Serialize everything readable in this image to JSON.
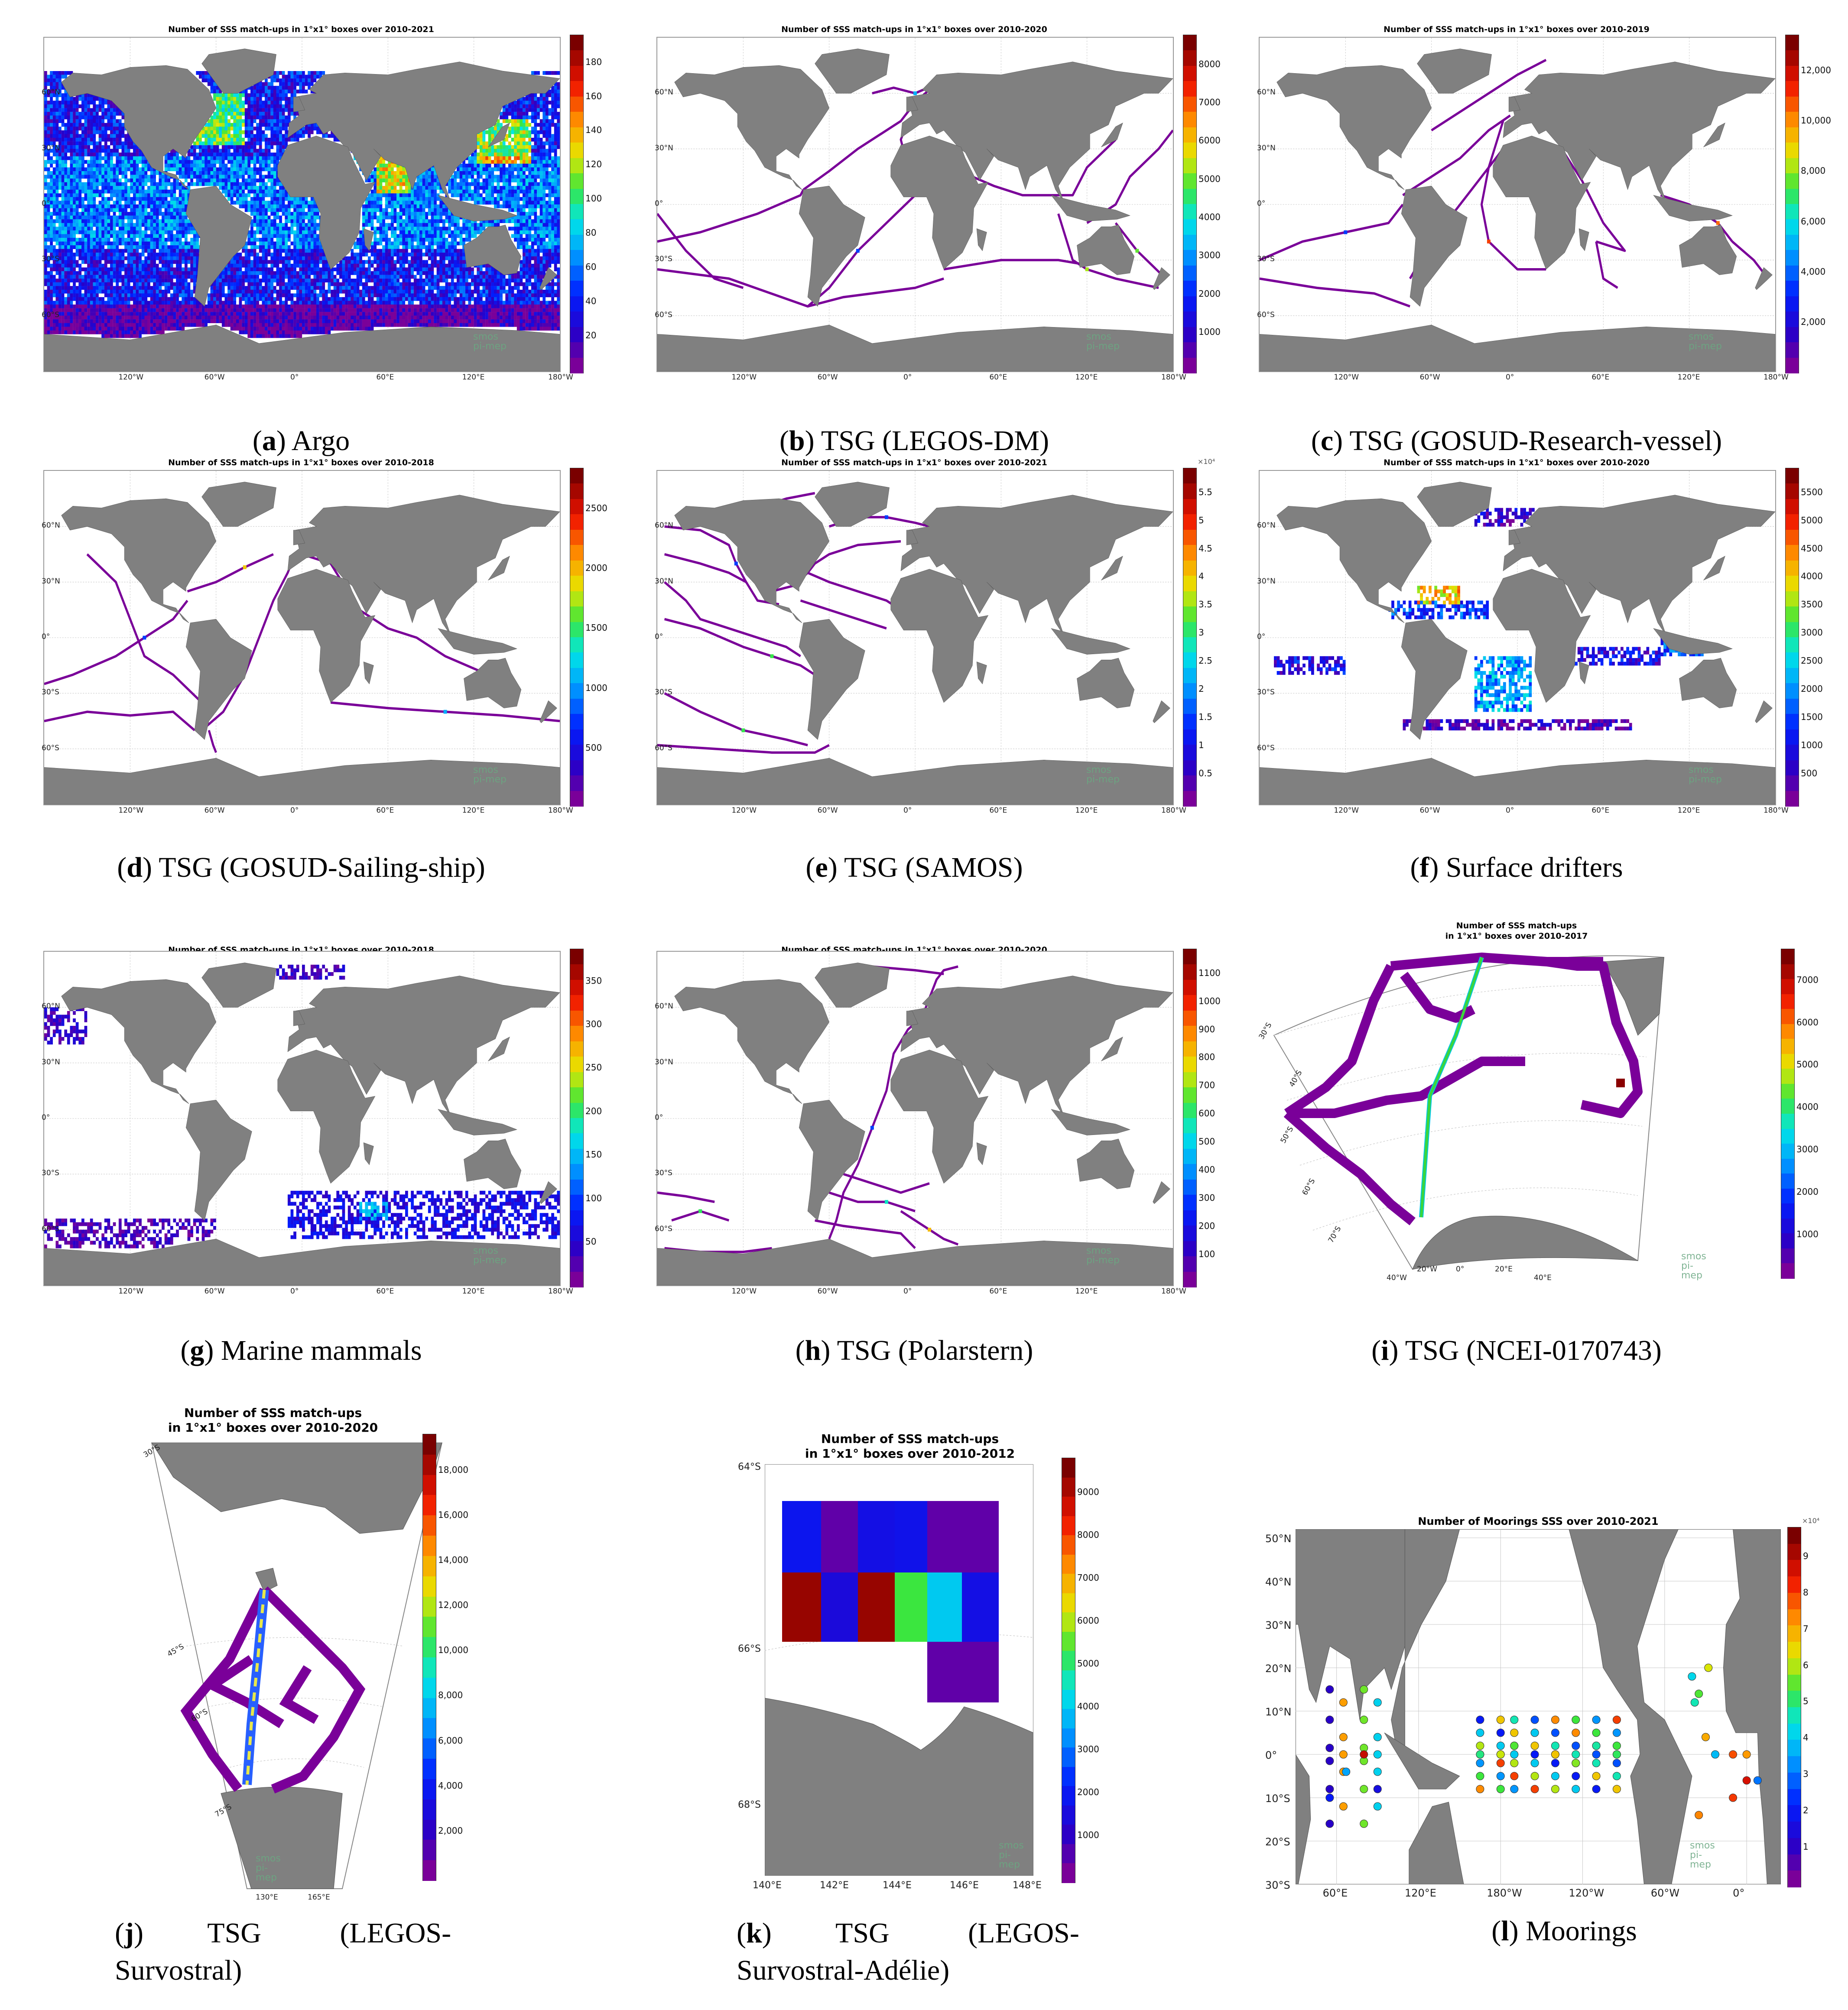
{
  "colors": {
    "land": "#808080",
    "ocean": "#ffffff",
    "grid": "#c8c8c8",
    "low": "#7a0099",
    "high": "#7a0000"
  },
  "logo": {
    "line1": "smos",
    "line2": "pi-mep",
    "icon": "smos-pi-mep-logo-icon"
  },
  "panels": [
    {
      "key": "a",
      "caption_letter": "a",
      "caption_text": "Argo",
      "title": "Number of SSS match-ups in 1°x1° boxes over 2010-2021",
      "projection": "global",
      "style": "dense",
      "lat_labels": [
        "60°N",
        "30°N",
        "0°",
        "30°S",
        "60°S"
      ],
      "lon_labels": [
        "120°W",
        "60°W",
        "0°",
        "60°E",
        "120°E",
        "180°W"
      ],
      "cbar_ticks": [
        "180",
        "160",
        "140",
        "120",
        "100",
        "80",
        "60",
        "40",
        "20"
      ],
      "cbar_exp": ""
    },
    {
      "key": "b",
      "caption_letter": "b",
      "caption_text": "TSG (LEGOS-DM)",
      "title": "Number of SSS match-ups in 1°x1° boxes over 2010-2020",
      "projection": "global",
      "style": "tracks",
      "lat_labels": [
        "60°N",
        "30°N",
        "0°",
        "30°S",
        "60°S"
      ],
      "lon_labels": [
        "120°W",
        "60°W",
        "0°",
        "60°E",
        "120°E",
        "180°W"
      ],
      "cbar_ticks": [
        "8000",
        "7000",
        "6000",
        "5000",
        "4000",
        "3000",
        "2000",
        "1000"
      ],
      "cbar_exp": ""
    },
    {
      "key": "c",
      "caption_letter": "c",
      "caption_text": "TSG (GOSUD-Research-vessel)",
      "title": "Number of SSS match-ups in 1°x1° boxes over 2010-2019",
      "projection": "global",
      "style": "tracks",
      "lat_labels": [
        "60°N",
        "30°N",
        "0°",
        "30°S",
        "60°S"
      ],
      "lon_labels": [
        "120°W",
        "60°W",
        "0°",
        "60°E",
        "120°E",
        "180°W"
      ],
      "cbar_ticks": [
        "12,000",
        "10,000",
        "8,000",
        "6,000",
        "4,000",
        "2,000"
      ],
      "cbar_exp": ""
    },
    {
      "key": "d",
      "caption_letter": "d",
      "caption_text": "TSG (GOSUD-Sailing-ship)",
      "title": "Number of SSS match-ups in 1°x1° boxes over 2010-2018",
      "projection": "global",
      "style": "tracks",
      "lat_labels": [
        "60°N",
        "30°N",
        "0°",
        "30°S",
        "60°S"
      ],
      "lon_labels": [
        "120°W",
        "60°W",
        "0°",
        "60°E",
        "120°E",
        "180°W"
      ],
      "cbar_ticks": [
        "2500",
        "2000",
        "1500",
        "1000",
        "500"
      ],
      "cbar_exp": ""
    },
    {
      "key": "e",
      "caption_letter": "e",
      "caption_text": "TSG (SAMOS)",
      "title": "Number of SSS match-ups in 1°x1° boxes over 2010-2021",
      "projection": "global",
      "style": "tracks",
      "lat_labels": [
        "60°N",
        "30°N",
        "0°",
        "30°S",
        "60°S"
      ],
      "lon_labels": [
        "120°W",
        "60°W",
        "0°",
        "60°E",
        "120°E",
        "180°W"
      ],
      "cbar_ticks": [
        "5.5",
        "5",
        "4.5",
        "4",
        "3.5",
        "3",
        "2.5",
        "2",
        "1.5",
        "1",
        "0.5"
      ],
      "cbar_exp": "×10⁴"
    },
    {
      "key": "f",
      "caption_letter": "f",
      "caption_text": "Surface drifters",
      "title": "Number of SSS match-ups in 1°x1° boxes over 2010-2020",
      "projection": "global",
      "style": "drifters",
      "lat_labels": [
        "60°N",
        "30°N",
        "0°",
        "30°S",
        "60°S"
      ],
      "lon_labels": [
        "120°W",
        "60°W",
        "0°",
        "60°E",
        "120°E",
        "180°W"
      ],
      "cbar_ticks": [
        "5500",
        "5000",
        "4500",
        "4000",
        "3500",
        "3000",
        "2500",
        "2000",
        "1500",
        "1000",
        "500"
      ],
      "cbar_exp": ""
    },
    {
      "key": "g",
      "caption_letter": "g",
      "caption_text": "Marine mammals",
      "title": "Number of SSS match-ups in 1°x1° boxes over 2010-2018",
      "projection": "global",
      "style": "mammals",
      "lat_labels": [
        "60°N",
        "30°N",
        "0°",
        "30°S",
        "60°S"
      ],
      "lon_labels": [
        "120°W",
        "60°W",
        "0°",
        "60°E",
        "120°E",
        "180°W"
      ],
      "cbar_ticks": [
        "350",
        "300",
        "250",
        "200",
        "150",
        "100",
        "50"
      ],
      "cbar_exp": ""
    },
    {
      "key": "h",
      "caption_letter": "h",
      "caption_text": "TSG (Polarstern)",
      "title": "Number of SSS match-ups in 1°x1° boxes over 2010-2020",
      "projection": "global",
      "style": "tracks",
      "lat_labels": [
        "60°N",
        "30°N",
        "0°",
        "30°S",
        "60°S"
      ],
      "lon_labels": [
        "120°W",
        "60°W",
        "0°",
        "60°E",
        "120°E",
        "180°W"
      ],
      "cbar_ticks": [
        "1100",
        "1000",
        "900",
        "800",
        "700",
        "600",
        "500",
        "400",
        "300",
        "200",
        "100"
      ],
      "cbar_exp": ""
    },
    {
      "key": "i",
      "caption_letter": "i",
      "caption_text": "TSG (NCEI-0170743)",
      "title_line1": "Number of SSS match-ups",
      "title_line2": "in 1°x1° boxes over 2010-2017",
      "projection": "conic",
      "lat_labels": [
        "30°S",
        "40°S",
        "50°S",
        "60°S",
        "70°S"
      ],
      "lon_labels": [
        "40°W",
        "20°W",
        "0°",
        "20°E",
        "40°E"
      ],
      "cbar_ticks": [
        "7000",
        "6000",
        "5000",
        "4000",
        "3000",
        "2000",
        "1000"
      ],
      "cbar_exp": ""
    },
    {
      "key": "j",
      "caption_letter": "j",
      "caption_line1": "TSG           (LEGOS-",
      "caption_line2": "Survostral)",
      "title_line1": "Number of SSS match-ups",
      "title_line2": "in 1°x1° boxes over 2010-2020",
      "projection": "conic",
      "lat_labels": [
        "30°S",
        "45°S",
        "60°S",
        "75°S"
      ],
      "lon_labels": [
        "130°E",
        "165°E"
      ],
      "cbar_ticks": [
        "18,000",
        "16,000",
        "14,000",
        "12,000",
        "10,000",
        "8,000",
        "6,000",
        "4,000",
        "2,000"
      ],
      "cbar_exp": ""
    },
    {
      "key": "k",
      "caption_letter": "k",
      "caption_line1": "TSG           (LEGOS-",
      "caption_line2": "Survostral-Adélie)",
      "title_line1": "Number of SSS match-ups",
      "title_line2": "in 1°x1° boxes over 2010-2012",
      "projection": "regional",
      "lat_labels": [
        "64°S",
        "66°S",
        "68°S"
      ],
      "lon_labels": [
        "140°E",
        "142°E",
        "144°E",
        "146°E",
        "148°E"
      ],
      "cbar_ticks": [
        "9000",
        "8000",
        "7000",
        "6000",
        "5000",
        "4000",
        "3000",
        "2000",
        "1000"
      ],
      "cbar_exp": ""
    },
    {
      "key": "l",
      "caption_letter": "l",
      "caption_text": "Moorings",
      "title": "Number of Moorings SSS over 2010-2021",
      "projection": "tropical",
      "lat_labels": [
        "50°N",
        "40°N",
        "30°N",
        "20°N",
        "10°N",
        "0°",
        "10°S",
        "20°S",
        "30°S"
      ],
      "lon_labels": [
        "60°E",
        "120°E",
        "180°W",
        "120°W",
        "60°W",
        "0°"
      ],
      "cbar_ticks": [
        "9",
        "8",
        "7",
        "6",
        "5",
        "4",
        "3",
        "2",
        "1"
      ],
      "cbar_exp": "×10⁴"
    }
  ],
  "chart_data": [
    {
      "panel": "a",
      "type": "heatmap",
      "title": "Number of SSS match-ups in 1°x1° boxes over 2010-2021",
      "colorbar_range": [
        0,
        190
      ]
    },
    {
      "panel": "b",
      "type": "heatmap",
      "title": "Number of SSS match-ups in 1°x1° boxes over 2010-2020",
      "colorbar_range": [
        0,
        8800
      ]
    },
    {
      "panel": "c",
      "type": "heatmap",
      "title": "Number of SSS match-ups in 1°x1° boxes over 2010-2019",
      "colorbar_range": [
        0,
        12300
      ]
    },
    {
      "panel": "d",
      "type": "heatmap",
      "title": "Number of SSS match-ups in 1°x1° boxes over 2010-2018",
      "colorbar_range": [
        0,
        2950
      ]
    },
    {
      "panel": "e",
      "type": "heatmap",
      "title": "Number of SSS match-ups in 1°x1° boxes over 2010-2021",
      "colorbar_range": [
        0,
        57000
      ]
    },
    {
      "panel": "f",
      "type": "heatmap",
      "title": "Number of SSS match-ups in 1°x1° boxes over 2010-2020",
      "colorbar_range": [
        0,
        5650
      ]
    },
    {
      "panel": "g",
      "type": "heatmap",
      "title": "Number of SSS match-ups in 1°x1° boxes over 2010-2018",
      "colorbar_range": [
        0,
        380
      ]
    },
    {
      "panel": "h",
      "type": "heatmap",
      "title": "Number of SSS match-ups in 1°x1° boxes over 2010-2020",
      "colorbar_range": [
        0,
        1150
      ]
    },
    {
      "panel": "i",
      "type": "heatmap",
      "colorbar_range": [
        0,
        7200
      ]
    },
    {
      "panel": "j",
      "type": "heatmap",
      "colorbar_range": [
        0,
        18500
      ]
    },
    {
      "panel": "k",
      "type": "heatmap",
      "colorbar_range": [
        0,
        9300
      ],
      "x": [
        "140°E-142°E",
        "142°E-143°E",
        "143°E-144°E",
        "144°E-145°E",
        "145°E-146°E",
        "146°E-147°E"
      ],
      "rows": [
        {
          "lat": "64.5°S-65.5°S",
          "values": [
            1700,
            300,
            1500,
            1600,
            300,
            300
          ]
        },
        {
          "lat": "65.5°S-66.5°S",
          "values": [
            9000,
            1300,
            9000,
            5100,
            3800,
            1500
          ]
        },
        {
          "lat": "66.5°S-67.2°S",
          "values": [
            null,
            null,
            null,
            null,
            300,
            300
          ]
        }
      ]
    },
    {
      "panel": "l",
      "type": "scatter",
      "title": "Number of Moorings SSS over 2010-2021",
      "colorbar_range": [
        0,
        98000
      ],
      "units": "count",
      "points": [
        {
          "lon": -40,
          "lat": 18,
          "v": 42000
        },
        {
          "lon": -38,
          "lat": 12,
          "v": 47000
        },
        {
          "lon": -35,
          "lat": 14,
          "v": 55000
        },
        {
          "lon": -28,
          "lat": 20,
          "v": 63000
        },
        {
          "lon": -30,
          "lat": 4,
          "v": 71000
        },
        {
          "lon": -23,
          "lat": 0,
          "v": 38000
        },
        {
          "lon": -10,
          "lat": 0,
          "v": 80000
        },
        {
          "lon": 0,
          "lat": 0,
          "v": 73000
        },
        {
          "lon": 8,
          "lat": -6,
          "v": 30000
        },
        {
          "lon": -10,
          "lat": -10,
          "v": 82000
        },
        {
          "lon": 0,
          "lat": -6,
          "v": 88000
        },
        {
          "lon": -35,
          "lat": -14,
          "v": 75000
        },
        {
          "lon": 165,
          "lat": 0,
          "v": 50000
        },
        {
          "lon": 180,
          "lat": 0,
          "v": 62000
        },
        {
          "lon": -170,
          "lat": 2,
          "v": 55000
        },
        {
          "lon": -155,
          "lat": 5,
          "v": 40000
        },
        {
          "lon": -140,
          "lat": 0,
          "v": 68000
        },
        {
          "lon": -125,
          "lat": -2,
          "v": 58000
        },
        {
          "lon": -110,
          "lat": 2,
          "v": 48000
        },
        {
          "lon": -95,
          "lat": 0,
          "v": 52000
        },
        {
          "lon": 67,
          "lat": -4,
          "v": 35000
        },
        {
          "lon": 80,
          "lat": 0,
          "v": 90000
        },
        {
          "lon": 90,
          "lat": -8,
          "v": 15000
        },
        {
          "lon": 55,
          "lat": -10,
          "v": 20000
        }
      ]
    }
  ]
}
